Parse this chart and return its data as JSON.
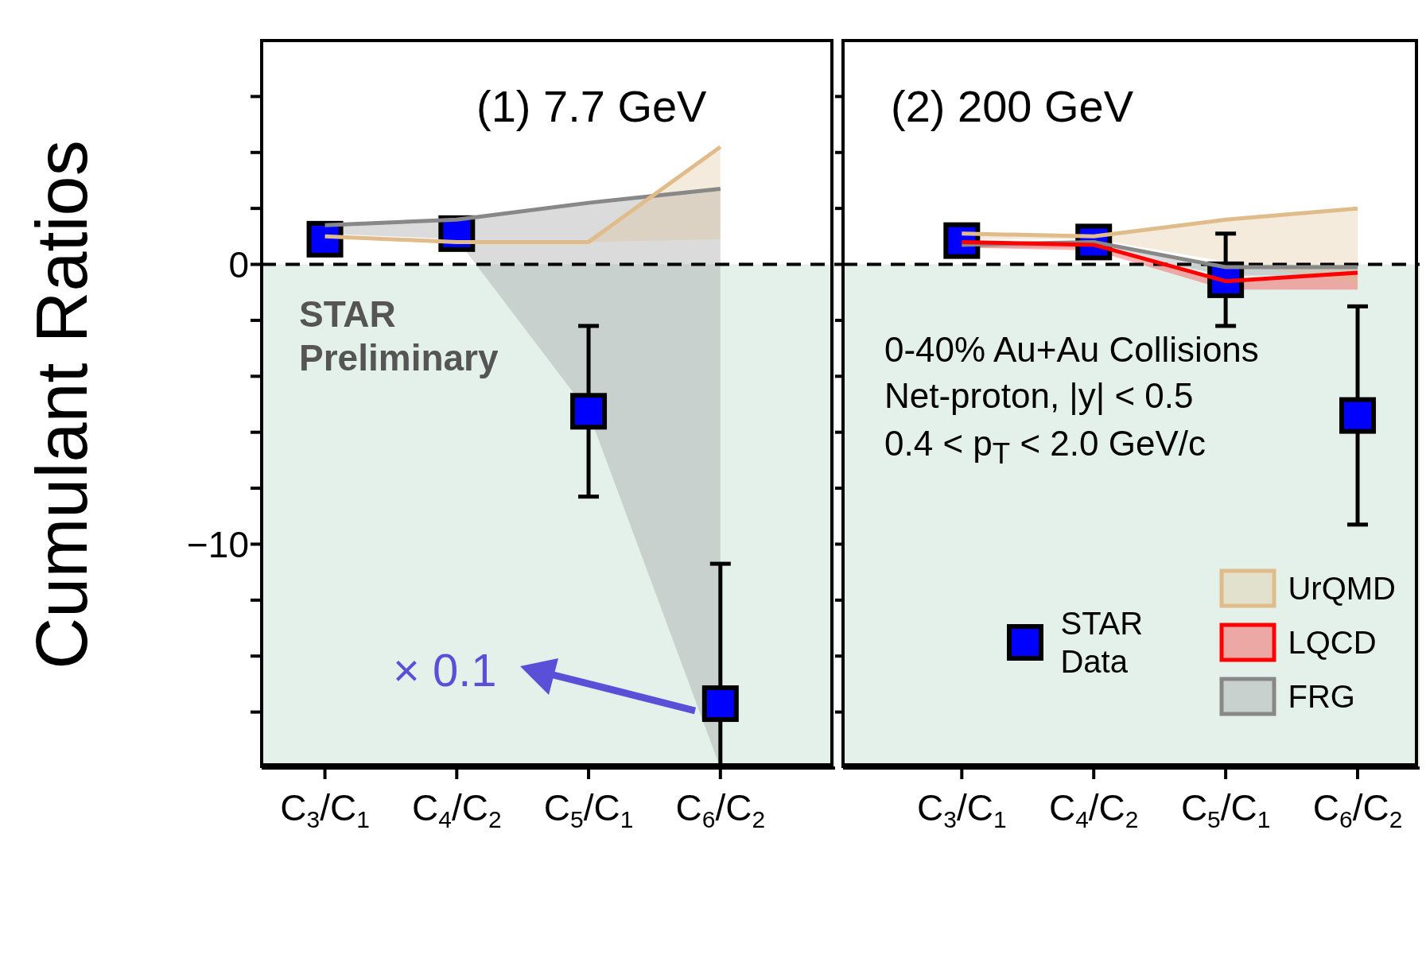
{
  "chart_data": [
    {
      "type": "scatter",
      "title": "(1) 7.7 GeV",
      "ylabel": "Cumulant Ratios",
      "categories": [
        "C$_{3}$/C$_{1}$",
        "C$_{4}$/C$_{2}$",
        "C$_{5}$/C$_{1}$",
        "C$_{6}$/C$_{2}$"
      ],
      "series": [
        {
          "color": "#0000ff",
          "values": [
            0.9,
            1.1,
            -5.25,
            -15.7
          ],
          "errors": [
            null,
            null,
            3.05,
            [
              -18,
              -10.7
            ]
          ],
          "marker": "square"
        },
        {
          "type": "line",
          "color": "#dfbc8a",
          "values": [
            1.0,
            0.8,
            0.8,
            4.2
          ],
          "lower": [
            0.9,
            0.8,
            0.8,
            0.9
          ],
          "upper": [
            1.0,
            0.8,
            0.8,
            4.2
          ]
        },
        {
          "type": "line",
          "color": "#888888",
          "values": [
            1.4,
            1.6,
            2.2,
            2.7
          ],
          "lower": [
            1.1,
            0.9,
            -5.3,
            -18
          ],
          "upper": [
            1.4,
            1.6,
            2.2,
            2.7
          ]
        }
      ],
      "ylim": [
        -18,
        8
      ],
      "yticks": [
        {
          "value": -16,
          "label": null
        },
        {
          "value": -14,
          "label": null
        },
        {
          "value": -12,
          "label": null
        },
        {
          "value": -10,
          "label": "−10"
        },
        {
          "value": -8,
          "label": null
        },
        {
          "value": -6,
          "label": null
        },
        {
          "value": -4,
          "label": null
        },
        {
          "value": -2,
          "label": null
        },
        0,
        {
          "value": 2,
          "label": null
        },
        {
          "value": 4,
          "label": null
        },
        {
          "value": 6,
          "label": null
        }
      ],
      "ref_lines": [
        {
          "axis": "y",
          "value": 0,
          "color": "#000000",
          "line_style": "dashed"
        }
      ],
      "bands": [
        {
          "axis": "y",
          "from": -18,
          "to": 0,
          "color": "#e4f1eb"
        }
      ],
      "annotations": [
        "STAR Preliminary",
        "× 0.1"
      ],
      "legend": false
    },
    {
      "type": "scatter",
      "title": "(2) 200 GeV",
      "categories": [
        "C$_{3}$/C$_{1}$",
        "C$_{4}$/C$_{2}$",
        "C$_{5}$/C$_{1}$",
        "C$_{6}$/C$_{2}$"
      ],
      "series": [
        {
          "name": "STAR Data",
          "color": "#0000ff",
          "values": [
            0.85,
            0.8,
            -0.55,
            -5.4
          ],
          "errors": [
            null,
            null,
            1.65,
            [
              -9.3,
              -1.5
            ]
          ],
          "marker": "square"
        },
        {
          "type": "line",
          "name": "UrQMD",
          "color": "#dfbc8a",
          "values": [
            1.1,
            1.0,
            1.6,
            2.0
          ],
          "lower": [
            0.9,
            0.9,
            0.1,
            -0.7
          ],
          "upper": [
            1.1,
            1.0,
            1.6,
            2.0
          ]
        },
        {
          "type": "line",
          "name": "LQCD",
          "color": "#ff0000",
          "values": [
            0.8,
            0.7,
            -0.6,
            -0.3
          ],
          "lower": [
            0.6,
            0.5,
            -0.9,
            -0.9
          ],
          "upper": [
            0.8,
            0.7,
            -0.6,
            -0.3
          ]
        },
        {
          "type": "line",
          "name": "FRG",
          "color": "#888888",
          "values": [
            0.7,
            0.8,
            -0.1,
            -0.1
          ],
          "lower": [
            0.6,
            0.6,
            -0.4,
            -0.4
          ],
          "upper": [
            0.7,
            0.8,
            -0.1,
            -0.1
          ]
        }
      ],
      "ylim": [
        -18,
        8
      ],
      "yticks": [
        {
          "value": -16,
          "label": null
        },
        {
          "value": -14,
          "label": null
        },
        {
          "value": -12,
          "label": null
        },
        {
          "value": -10,
          "label": null
        },
        {
          "value": -8,
          "label": null
        },
        {
          "value": -6,
          "label": null
        },
        {
          "value": -4,
          "label": null
        },
        {
          "value": -2,
          "label": null
        },
        {
          "value": 0,
          "label": null
        },
        {
          "value": 2,
          "label": null
        },
        {
          "value": 4,
          "label": null
        },
        {
          "value": 6,
          "label": null
        }
      ],
      "tick_labels": "x",
      "ref_lines": [
        {
          "axis": "y",
          "value": 0,
          "color": "#000000",
          "line_style": "dashed"
        }
      ],
      "bands": [
        {
          "axis": "y",
          "from": -18,
          "to": 0,
          "color": "#e4f1eb"
        }
      ],
      "annotations": [
        "0-40% Au+Au Collisions",
        "Net-proton, |y| < 0.5",
        "0.4 < p$_{T}$ < 2.0 GeV/c"
      ],
      "legend": "bottom right"
    }
  ]
}
